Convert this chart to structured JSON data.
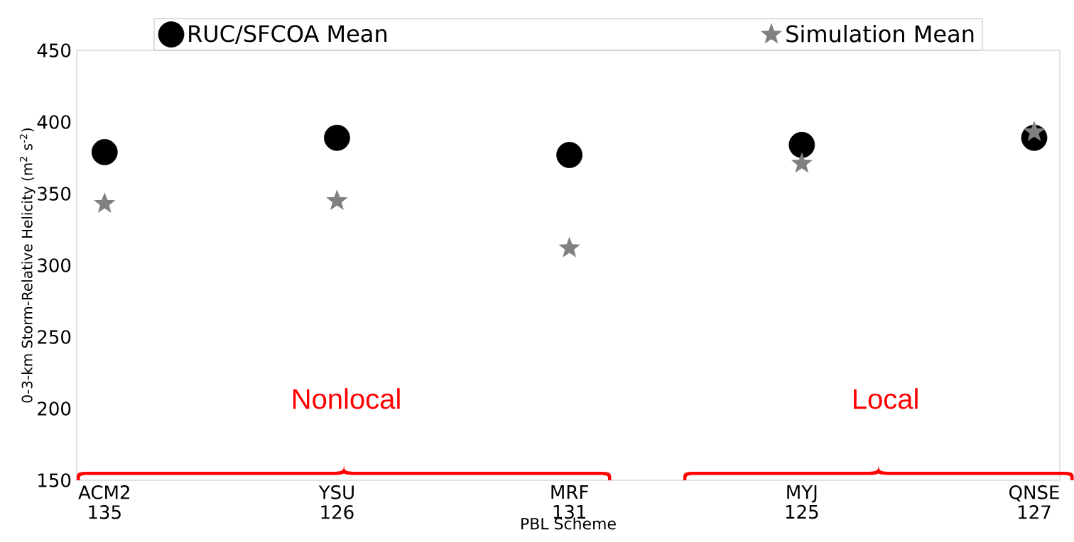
{
  "chart_data": {
    "type": "scatter",
    "categories": [
      "ACM2 135",
      "YSU 126",
      "MRF 131",
      "MYJ 125",
      "QNSE 127"
    ],
    "series": [
      {
        "name": "RUC/SFCOA Mean",
        "color": "#000000",
        "marker": "circle",
        "values": [
          379,
          389,
          377,
          384,
          389
        ]
      },
      {
        "name": "Simulation Mean",
        "color": "#808080",
        "marker": "star",
        "values": [
          343,
          345,
          312,
          371,
          393
        ]
      }
    ],
    "xlabel": "PBL Scheme",
    "ylabel": "0-3-km Storm-Relative Helicity (m$^{2}$ s$^{-2}$)",
    "ylim": [
      150,
      450
    ],
    "yticks": [
      150,
      200,
      250,
      300,
      350,
      400,
      450
    ],
    "annotations": [
      "Nonlocal",
      "Local"
    ],
    "grid": false,
    "legend": "top"
  }
}
